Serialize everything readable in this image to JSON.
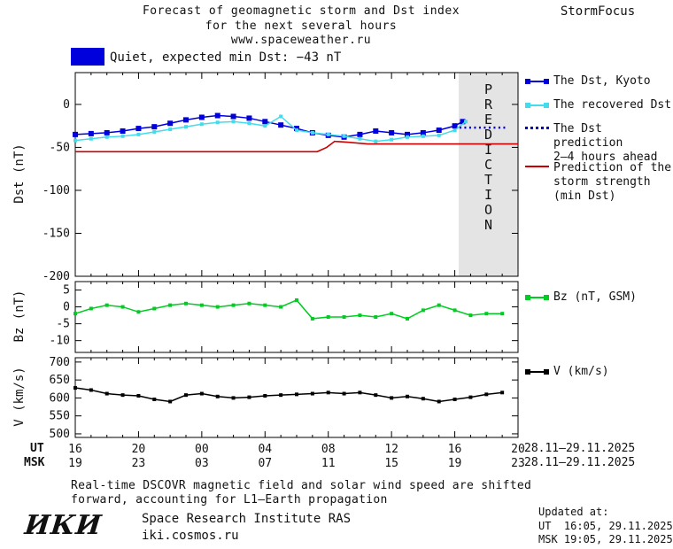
{
  "header": {
    "title_line1": "Forecast of geomagnetic storm and Dst index",
    "title_line2": "for the next several hours",
    "title_line3": "www.spaceweather.ru",
    "brand": "StormFocus"
  },
  "status": {
    "label": "Quiet, expected min Dst: −43 nT",
    "swatch_color": "#0000dd"
  },
  "legend": {
    "dst_kyoto": "The Dst, Kyoto",
    "recovered": "The recovered Dst",
    "prediction_line1": "The Dst prediction",
    "prediction_line2": "2–4 hours ahead",
    "strength_line1": "Prediction of the",
    "strength_line2": "storm strength",
    "strength_line3": "(min Dst)",
    "bz": "Bz (nT, GSM)",
    "v": "V (km/s)"
  },
  "xaxis": {
    "ut_label": "UT",
    "msk_label": "MSK",
    "ut_ticks": [
      "16",
      "20",
      "00",
      "04",
      "08",
      "12",
      "16",
      "20"
    ],
    "msk_ticks": [
      "19",
      "23",
      "03",
      "07",
      "11",
      "15",
      "19",
      "23"
    ],
    "ut_date": "28.11–29.11.2025",
    "msk_date": "28.11–29.11.2025"
  },
  "footer": {
    "note_line1": "Real-time DSCOVR magnetic field and solar wind speed are shifted",
    "note_line2": "forward, accounting for L1–Earth propagation",
    "logo": "ИКИ",
    "institute": "Space Research Institute RAS",
    "site": "iki.cosmos.ru",
    "updated_label": "Updated at:",
    "updated_ut": "UT  16:05, 29.11.2025",
    "updated_msk": "MSK 19:05, 29.11.2025"
  },
  "chart_data": [
    {
      "type": "line",
      "title": "Forecast of geomagnetic storm and Dst index for the next several hours",
      "ylabel": "Dst (nT)",
      "ylim": [
        -200,
        37
      ],
      "yticks": [
        0,
        -50,
        -100,
        -150,
        -200
      ],
      "ytick_labels": [
        "0",
        "-50",
        "-100",
        "-150",
        "-200"
      ],
      "xlim": [
        0,
        28
      ],
      "xticks": [
        0,
        4,
        8,
        12,
        16,
        20,
        24,
        28
      ],
      "x_description": "UT hours from 16:00 28.11.2025 to 20:00 29.11.2025",
      "prediction_band": {
        "x_start": 24.25,
        "x_end": 28,
        "label": "PREDICTION",
        "fill": "#e4e4e4",
        "text_color": "#b2b2b2"
      },
      "series": [
        {
          "name": "The Dst, Kyoto",
          "color": "#0000dd",
          "marker": "square",
          "marker_size": 6,
          "width": 1.5,
          "x": [
            0,
            1,
            2,
            3,
            4,
            5,
            6,
            7,
            8,
            9,
            10,
            11,
            12,
            13,
            14,
            15,
            16,
            17,
            18,
            19,
            20,
            21,
            22,
            23,
            24,
            24.5
          ],
          "y": [
            -35,
            -34,
            -33,
            -31,
            -28,
            -26,
            -22,
            -18,
            -15,
            -13,
            -14,
            -16,
            -20,
            -24,
            -28,
            -33,
            -36,
            -38,
            -35,
            -31,
            -33,
            -35,
            -33,
            -30,
            -25,
            -20
          ]
        },
        {
          "name": "The recovered Dst",
          "color": "#44dcec",
          "marker": "square",
          "marker_size": 4,
          "width": 1.5,
          "x": [
            0,
            1,
            2,
            3,
            4,
            5,
            6,
            7,
            8,
            9,
            10,
            11,
            12,
            13,
            14,
            15,
            16,
            17,
            18,
            19,
            20,
            21,
            22,
            23,
            24,
            24.7
          ],
          "y": [
            -42,
            -40,
            -38,
            -37,
            -35,
            -32,
            -29,
            -26,
            -23,
            -21,
            -20,
            -22,
            -25,
            -14,
            -30,
            -33,
            -35,
            -37,
            -40,
            -43,
            -41,
            -38,
            -37,
            -36,
            -30,
            -20
          ]
        },
        {
          "name": "The Dst prediction 2–4 hours ahead",
          "color": "#0000dd",
          "style": "dotted",
          "width": 2.5,
          "x": [
            24.3,
            25,
            26,
            27.2
          ],
          "y": [
            -27,
            -27,
            -27,
            -27
          ]
        },
        {
          "name": "Prediction of the storm strength (min Dst)",
          "color": "#cc0000",
          "width": 1.6,
          "x": [
            0,
            15.3,
            15.9,
            16.4,
            17.2,
            18.5,
            28
          ],
          "y": [
            -55,
            -55,
            -50,
            -43,
            -44,
            -46,
            -46
          ]
        }
      ]
    },
    {
      "type": "line",
      "ylabel": "Bz (nT)",
      "ylim": [
        -13.5,
        7.5
      ],
      "yticks": [
        5,
        0,
        -5,
        -10
      ],
      "ytick_labels": [
        "5",
        "0",
        "-5",
        "-10"
      ],
      "xlim": [
        0,
        28
      ],
      "xticks": [
        0,
        4,
        8,
        12,
        16,
        20,
        24,
        28
      ],
      "series": [
        {
          "name": "Bz (nT, GSM)",
          "color": "#00cc22",
          "marker": "square",
          "marker_size": 4,
          "width": 1.5,
          "x": [
            0,
            1,
            2,
            3,
            4,
            5,
            6,
            7,
            8,
            9,
            10,
            11,
            12,
            13,
            14,
            15,
            16,
            17,
            18,
            19,
            20,
            21,
            22,
            23,
            24,
            25,
            26,
            27
          ],
          "y": [
            -2,
            -0.5,
            0.5,
            0,
            -1.5,
            -0.5,
            0.5,
            1,
            0.5,
            0,
            0.5,
            1,
            0.5,
            0,
            2,
            -3.5,
            -3,
            -3,
            -2.5,
            -3,
            -2,
            -3.5,
            -1,
            0.5,
            -1,
            -2.5,
            -2,
            -2
          ]
        }
      ]
    },
    {
      "type": "line",
      "ylabel": "V (km/s)",
      "ylim": [
        490,
        712
      ],
      "yticks": [
        700,
        650,
        600,
        550,
        500
      ],
      "ytick_labels": [
        "700",
        "650",
        "600",
        "550",
        "500"
      ],
      "xlim": [
        0,
        28
      ],
      "xticks": [
        0,
        4,
        8,
        12,
        16,
        20,
        24,
        28
      ],
      "series": [
        {
          "name": "V (km/s)",
          "color": "#000000",
          "marker": "square",
          "marker_size": 4,
          "width": 1.5,
          "x": [
            0,
            1,
            2,
            3,
            4,
            5,
            6,
            7,
            8,
            9,
            10,
            11,
            12,
            13,
            14,
            15,
            16,
            17,
            18,
            19,
            20,
            21,
            22,
            23,
            24,
            25,
            26,
            27
          ],
          "y": [
            628,
            622,
            612,
            608,
            606,
            596,
            590,
            608,
            612,
            604,
            600,
            602,
            606,
            608,
            610,
            612,
            615,
            612,
            615,
            608,
            600,
            604,
            598,
            590,
            596,
            602,
            610,
            615
          ]
        }
      ]
    }
  ]
}
